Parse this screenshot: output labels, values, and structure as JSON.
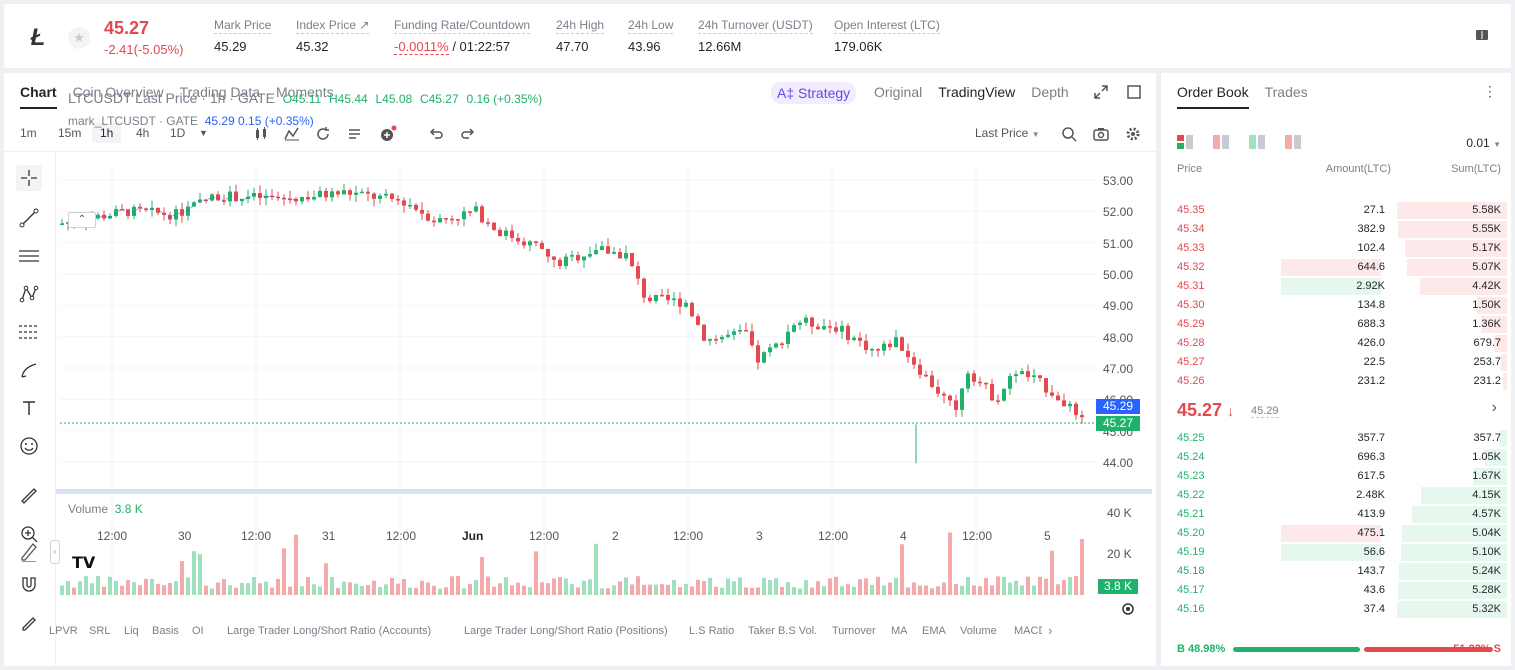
{
  "header": {
    "symbol_logo": "Ł",
    "last_price": "45.27",
    "change": "-2.41(-5.05%)",
    "stats": [
      {
        "label": "Mark Price",
        "value": "45.29"
      },
      {
        "label": "Index Price ↗",
        "value": "45.32"
      },
      {
        "label": "Funding Rate/Countdown",
        "value_rate": "-0.0011%",
        "value_countdown": "/ 01:22:57"
      },
      {
        "label": "24h High",
        "value": "47.70"
      },
      {
        "label": "24h Low",
        "value": "43.96"
      },
      {
        "label": "24h Turnover (USDT)",
        "value": "12.66M"
      },
      {
        "label": "Open Interest (LTC)",
        "value": "179.06K"
      }
    ]
  },
  "chart_tabs": [
    "Chart",
    "Coin Overview",
    "Trading Data",
    "Moments"
  ],
  "view_tabs": {
    "strategy": "A‡ Strategy",
    "items": [
      "Original",
      "TradingView",
      "Depth"
    ]
  },
  "intervals": [
    "1m",
    "15m",
    "1h",
    "4h",
    "1D"
  ],
  "price_type": "Last Price",
  "legend": {
    "main_title": "LTCUSDT Last Price · 1h · GATE",
    "o": "O45.11",
    "h": "H45.44",
    "l": "L45.08",
    "c": "C45.27",
    "chg": "0.16 (+0.35%)",
    "mark_title": "mark_LTCUSDT · GATE",
    "mark_vals": "45.29  0.15 (+0.35%)"
  },
  "volume_legend": {
    "label": "Volume",
    "value": "3.8 K"
  },
  "y_ticks": [
    "53.00",
    "52.00",
    "51.00",
    "50.00",
    "49.00",
    "48.00",
    "47.00",
    "46.00",
    "45.00",
    "44.00"
  ],
  "y_tags": {
    "mark": "45.29",
    "last": "45.27"
  },
  "vol_ticks": [
    "40 K",
    "20 K"
  ],
  "vol_tag": "3.8 K",
  "x_ticks": [
    "12:00",
    "30",
    "12:00",
    "31",
    "12:00",
    "Jun",
    "12:00",
    "2",
    "12:00",
    "3",
    "12:00",
    "4",
    "12:00",
    "5"
  ],
  "indicators": [
    "LPVR",
    "SRL",
    "Liq",
    "Basis",
    "OI",
    "Large Trader Long/Short Ratio (Accounts)",
    "Large Trader Long/Short Ratio (Positions)",
    "L.S Ratio",
    "Taker B.S Vol.",
    "Turnover",
    "MA",
    "EMA",
    "Volume",
    "MACD"
  ],
  "orderbook": {
    "tabs": [
      "Order Book",
      "Trades"
    ],
    "precision": "0.01",
    "headers": [
      "Price",
      "Amount(LTC)",
      "Sum(LTC)"
    ],
    "asks": [
      {
        "p": "45.35",
        "a": "27.1",
        "s": "5.58K",
        "sw": 1.0,
        "aw": 0
      },
      {
        "p": "45.34",
        "a": "382.9",
        "s": "5.55K",
        "sw": 0.99,
        "aw": 0
      },
      {
        "p": "45.33",
        "a": "102.4",
        "s": "5.17K",
        "sw": 0.93,
        "aw": 0
      },
      {
        "p": "45.32",
        "a": "644.6",
        "s": "5.07K",
        "sw": 0.91,
        "aw": 1
      },
      {
        "p": "45.31",
        "a": "2.92K",
        "s": "4.42K",
        "sw": 0.79,
        "aw": 2
      },
      {
        "p": "45.30",
        "a": "134.8",
        "s": "1.50K",
        "sw": 0.27,
        "aw": 0
      },
      {
        "p": "45.29",
        "a": "688.3",
        "s": "1.36K",
        "sw": 0.24,
        "aw": 0
      },
      {
        "p": "45.28",
        "a": "426.0",
        "s": "679.7",
        "sw": 0.12,
        "aw": 0
      },
      {
        "p": "45.27",
        "a": "22.5",
        "s": "253.7",
        "sw": 0.05,
        "aw": 0
      },
      {
        "p": "45.26",
        "a": "231.2",
        "s": "231.2",
        "sw": 0.04,
        "aw": 0
      }
    ],
    "mid": {
      "price": "45.27",
      "arrow": "↓",
      "mark": "45.29"
    },
    "bids": [
      {
        "p": "45.25",
        "a": "357.7",
        "s": "357.7",
        "sw": 0.07,
        "aw": 0
      },
      {
        "p": "45.24",
        "a": "696.3",
        "s": "1.05K",
        "sw": 0.2,
        "aw": 0
      },
      {
        "p": "45.23",
        "a": "617.5",
        "s": "1.67K",
        "sw": 0.31,
        "aw": 0
      },
      {
        "p": "45.22",
        "a": "2.48K",
        "s": "4.15K",
        "sw": 0.78,
        "aw": 0
      },
      {
        "p": "45.21",
        "a": "413.9",
        "s": "4.57K",
        "sw": 0.86,
        "aw": 0
      },
      {
        "p": "45.20",
        "a": "475.1",
        "s": "5.04K",
        "sw": 0.95,
        "aw": 1
      },
      {
        "p": "45.19",
        "a": "56.6",
        "s": "5.10K",
        "sw": 0.96,
        "aw": 2
      },
      {
        "p": "45.18",
        "a": "143.7",
        "s": "5.24K",
        "sw": 0.98,
        "aw": 0
      },
      {
        "p": "45.17",
        "a": "43.6",
        "s": "5.28K",
        "sw": 0.99,
        "aw": 0
      },
      {
        "p": "45.16",
        "a": "37.4",
        "s": "5.32K",
        "sw": 1.0,
        "aw": 0
      }
    ],
    "buy_label": "B 48.98%",
    "sell_label": "51.02% S",
    "buy_ratio": 0.4898
  },
  "colors": {
    "up": "#20b26c",
    "down": "#e5484d",
    "up_bar": "#e6f7ee",
    "down_bar": "#fde9ea"
  }
}
